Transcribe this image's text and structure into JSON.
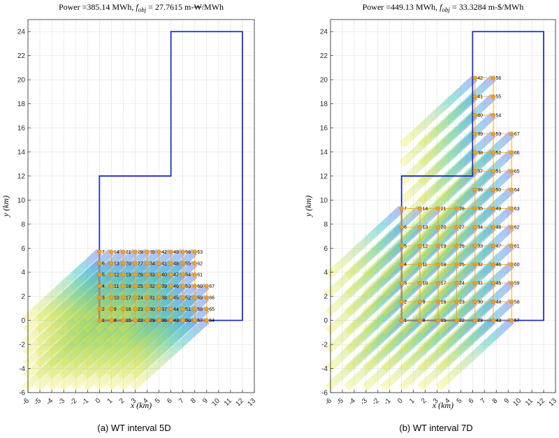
{
  "chart_data": [
    {
      "type": "scatter",
      "title_prefix": "Power =385.14 MWh, ",
      "title_f": "f",
      "title_sub": "obj",
      "title_suffix": " = 27.7615 m-₩/MWh",
      "xlabel": "x (km)",
      "ylabel": "y (km)",
      "xlim": [
        -6,
        13
      ],
      "ylim": [
        -6,
        25
      ],
      "xticks": [
        -6,
        -5,
        -4,
        -3,
        -2,
        -1,
        0,
        1,
        2,
        3,
        4,
        5,
        6,
        7,
        8,
        9,
        10,
        11,
        12,
        13
      ],
      "yticks": [
        -6,
        -4,
        -2,
        0,
        2,
        4,
        6,
        8,
        10,
        12,
        14,
        16,
        18,
        20,
        22,
        24
      ],
      "grid": true,
      "caption": "(a) WT interval 5D",
      "boundary": [
        [
          0,
          0
        ],
        [
          12,
          0
        ],
        [
          12,
          24
        ],
        [
          6,
          24
        ],
        [
          6,
          12
        ],
        [
          0,
          12
        ],
        [
          0,
          0
        ]
      ],
      "spacing": 0.95,
      "columns": [
        {
          "x": 0,
          "ids": [
            1,
            2,
            3,
            4,
            5,
            6,
            7
          ]
        },
        {
          "x": 1,
          "ids": [
            8,
            9,
            10,
            11,
            12,
            13,
            14
          ]
        },
        {
          "x": 2,
          "ids": [
            15,
            16,
            17,
            18,
            19,
            20,
            21
          ]
        },
        {
          "x": 3,
          "ids": [
            22,
            23,
            24,
            25,
            26,
            27,
            28
          ]
        },
        {
          "x": 4,
          "ids": [
            29,
            30,
            31,
            32,
            33,
            34,
            35
          ]
        },
        {
          "x": 5,
          "ids": [
            36,
            37,
            38,
            39,
            40,
            41,
            42
          ]
        },
        {
          "x": 6,
          "ids": [
            43,
            44,
            45,
            46,
            47,
            48,
            49
          ]
        },
        {
          "x": 7,
          "ids": [
            50,
            51,
            52,
            53,
            54,
            55,
            56
          ]
        },
        {
          "x": 8,
          "ids": [
            57,
            58,
            59,
            60,
            61,
            62,
            63
          ]
        },
        {
          "x": 9,
          "ids": [
            64,
            65,
            66,
            67
          ]
        }
      ]
    },
    {
      "type": "scatter",
      "title_prefix": "Power =449.13 MWh, ",
      "title_f": "f",
      "title_sub": "obj",
      "title_suffix": " = 33.3284 m-$/MWh",
      "xlabel": "x (km)",
      "ylabel": "y (km)",
      "xlim": [
        -6,
        13
      ],
      "ylim": [
        -6,
        25
      ],
      "xticks": [
        -6,
        -5,
        -4,
        -3,
        -2,
        -1,
        0,
        1,
        2,
        3,
        4,
        5,
        6,
        7,
        8,
        9,
        10,
        11,
        12,
        13
      ],
      "yticks": [
        -6,
        -4,
        -2,
        0,
        2,
        4,
        6,
        8,
        10,
        12,
        14,
        16,
        18,
        20,
        22,
        24
      ],
      "grid": true,
      "caption": "(b) WT interval 7D",
      "boundary": [
        [
          0,
          0
        ],
        [
          12,
          0
        ],
        [
          12,
          24
        ],
        [
          6,
          24
        ],
        [
          6,
          12
        ],
        [
          0,
          12
        ],
        [
          0,
          0
        ]
      ],
      "spacing": 1.55,
      "columns": [
        {
          "x": 0,
          "ids": [
            1,
            2,
            3,
            4,
            5,
            6,
            7
          ]
        },
        {
          "x": 1.55,
          "ids": [
            8,
            9,
            10,
            11,
            12,
            13,
            14
          ]
        },
        {
          "x": 3.1,
          "ids": [
            15,
            16,
            17,
            18,
            19,
            20,
            21
          ]
        },
        {
          "x": 4.65,
          "ids": [
            22,
            23,
            24,
            25,
            26,
            27,
            28
          ]
        },
        {
          "x": 6.2,
          "ids": [
            29,
            30,
            31,
            32,
            33,
            34,
            35,
            36,
            37,
            38,
            39,
            40,
            41,
            42
          ]
        },
        {
          "x": 7.75,
          "ids": [
            43,
            44,
            45,
            46,
            47,
            48,
            49,
            50,
            51,
            52,
            53,
            54,
            55,
            56
          ]
        },
        {
          "x": 9.3,
          "ids": [
            57,
            58,
            59,
            60,
            61,
            62,
            63,
            64,
            65,
            66,
            67
          ]
        }
      ]
    }
  ]
}
